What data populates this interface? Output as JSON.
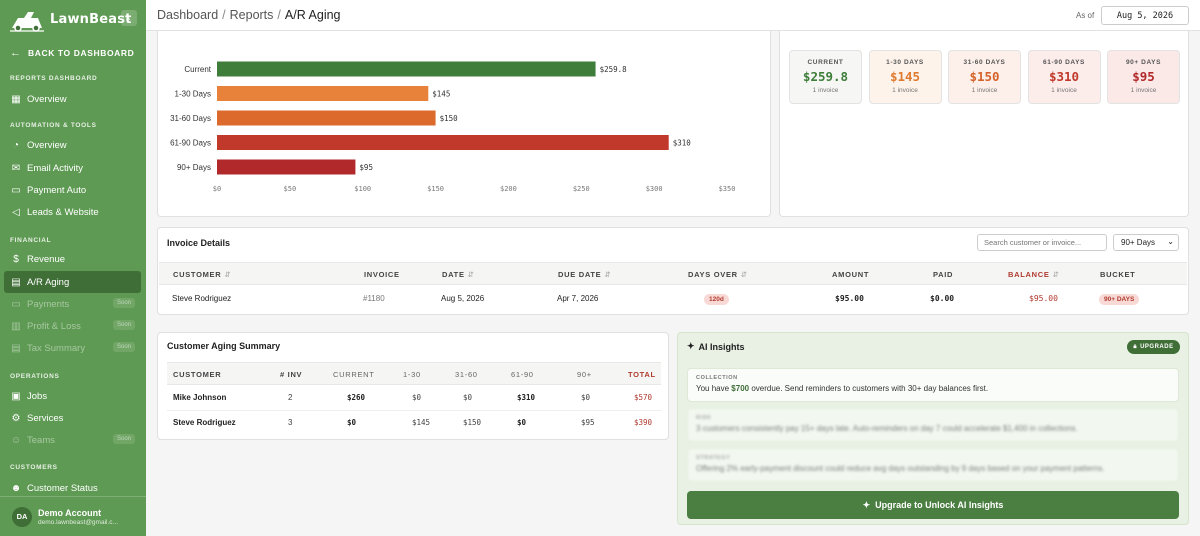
{
  "brand": {
    "name": "LawnBeast",
    "collapse_icon": "chevron-left-icon"
  },
  "sidebar": {
    "back_label": "BACK TO DASHBOARD",
    "sections": {
      "reports": "REPORTS DASHBOARD",
      "automation": "AUTOMATION & TOOLS",
      "financial": "FINANCIAL",
      "operations": "OPERATIONS",
      "customers": "CUSTOMERS"
    },
    "items": {
      "reports_overview": "Overview",
      "automation_overview": "Overview",
      "email_activity": "Email Activity",
      "payment_auto": "Payment Auto",
      "leads_website": "Leads & Website",
      "revenue": "Revenue",
      "ar_aging": "A/R Aging",
      "payments": "Payments",
      "profit_loss": "Profit & Loss",
      "tax_summary": "Tax Summary",
      "jobs": "Jobs",
      "services": "Services",
      "teams": "Teams",
      "customer_status": "Customer Status"
    },
    "soon_label": "Soon",
    "account": {
      "initials": "DA",
      "name": "Demo Account",
      "email": "demo.lawnbeast@gmail.c..."
    }
  },
  "header": {
    "crumbs": [
      "Dashboard",
      "Reports",
      "A/R Aging"
    ],
    "as_of_label": "As of",
    "as_of_date": "Aug 5, 2026"
  },
  "chart_data": {
    "type": "bar",
    "orientation": "horizontal",
    "categories": [
      "Current",
      "1-30 Days",
      "31-60 Days",
      "61-90 Days",
      "90+ Days"
    ],
    "values": [
      259.8,
      145,
      150,
      310,
      95
    ],
    "value_labels": [
      "$259.8",
      "$145",
      "$150",
      "$310",
      "$95"
    ],
    "colors": [
      "#3e7d3a",
      "#e8823a",
      "#dc6a2c",
      "#c0392b",
      "#b1292a"
    ],
    "xlim": [
      0,
      350
    ],
    "xticks": [
      "$0",
      "$50",
      "$100",
      "$150",
      "$200",
      "$250",
      "$300",
      "$350"
    ],
    "grid": false
  },
  "buckets": [
    {
      "label": "CURRENT",
      "value": "$259.8",
      "count": "1 invoice",
      "color": "#3e7d3a",
      "bg": "#f6f7f5"
    },
    {
      "label": "1-30 DAYS",
      "value": "$145",
      "count": "1 invoice",
      "color": "#e07a30",
      "bg": "#fdf3ea"
    },
    {
      "label": "31-60 DAYS",
      "value": "$150",
      "count": "1 invoice",
      "color": "#d4622a",
      "bg": "#fdf0ea"
    },
    {
      "label": "61-90 DAYS",
      "value": "$310",
      "count": "1 invoice",
      "color": "#c0392b",
      "bg": "#fcecea"
    },
    {
      "label": "90+ DAYS",
      "value": "$95",
      "count": "1 invoice",
      "color": "#b1292a",
      "bg": "#fbe9e8"
    }
  ],
  "invoices": {
    "title": "Invoice Details",
    "search_placeholder": "Search customer or invoice...",
    "filter_value": "90+ Days",
    "columns": [
      "CUSTOMER",
      "INVOICE",
      "DATE",
      "DUE DATE",
      "DAYS OVER",
      "AMOUNT",
      "PAID",
      "BALANCE",
      "BUCKET"
    ],
    "rows": [
      {
        "customer": "Steve Rodriguez",
        "invoice": "#1180",
        "date": "Aug 5, 2026",
        "due": "Apr 7, 2026",
        "days_over": "120d",
        "amount": "$95.00",
        "paid": "$0.00",
        "balance": "$95.00",
        "bucket": "90+ DAYS"
      }
    ]
  },
  "customer_summary": {
    "title": "Customer Aging Summary",
    "columns": [
      "CUSTOMER",
      "# INV",
      "CURRENT",
      "1-30",
      "31-60",
      "61-90",
      "90+",
      "TOTAL"
    ],
    "rows": [
      {
        "customer": "Mike Johnson",
        "inv": "2",
        "current": "$260",
        "d30": "$0",
        "d60": "$0",
        "d90": "$310",
        "d90p": "$0",
        "total": "$570"
      },
      {
        "customer": "Steve Rodriguez",
        "inv": "3",
        "current": "$0",
        "d30": "$145",
        "d60": "$150",
        "d90": "$0",
        "d90p": "$95",
        "total": "$390"
      }
    ]
  },
  "ai": {
    "title": "AI Insights",
    "badge": "UPGRADE",
    "insights": [
      {
        "tag": "COLLECTION",
        "pre": "You have ",
        "highlight": "$700",
        "post": " overdue. Send reminders to customers with 30+ day balances first."
      },
      {
        "tag": "RISK",
        "text": "3 customers consistently pay 15+ days late. Auto-reminders on day 7 could accelerate $1,400 in collections."
      },
      {
        "tag": "STRATEGY",
        "text": "Offering 2% early-payment discount could reduce avg days outstanding by 9 days based on your payment patterns."
      }
    ],
    "unlock_label": "Upgrade to Unlock AI Insights"
  }
}
